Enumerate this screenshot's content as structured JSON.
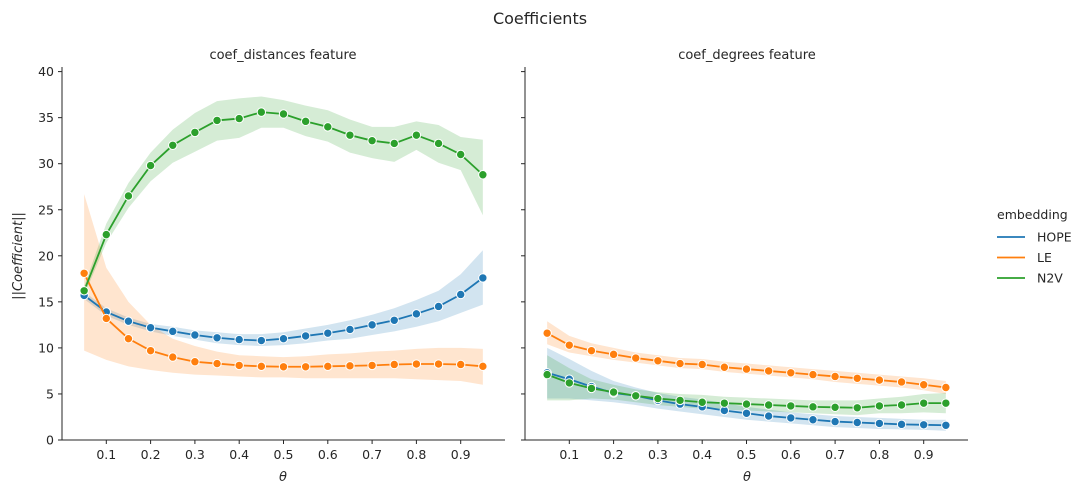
{
  "chart_data": {
    "type": "line",
    "title": "Coefficients",
    "xlabel": "θ",
    "ylabel": "||Coefficient||",
    "xlim": [
      0.0,
      1.0
    ],
    "ylim": [
      0,
      40.5
    ],
    "x": [
      0.05,
      0.1,
      0.15,
      0.2,
      0.25,
      0.3,
      0.35,
      0.4,
      0.45,
      0.5,
      0.55,
      0.6,
      0.65,
      0.7,
      0.75,
      0.8,
      0.85,
      0.9,
      0.95
    ],
    "x_ticks": [
      "0.1",
      "0.2",
      "0.3",
      "0.4",
      "0.5",
      "0.6",
      "0.7",
      "0.8",
      "0.9"
    ],
    "y_ticks": [
      "0",
      "5",
      "10",
      "15",
      "20",
      "25",
      "30",
      "35",
      "40"
    ],
    "legend": {
      "title": "embedding",
      "placement": "right",
      "entries": [
        "HOPE",
        "LE",
        "N2V"
      ]
    },
    "colors": {
      "HOPE": "#1f77b4",
      "LE": "#ff7f0e",
      "N2V": "#2ca02c"
    },
    "panels": [
      {
        "title": "coef_distances feature",
        "series": [
          {
            "name": "HOPE",
            "values": [
              15.7,
              13.9,
              12.9,
              12.2,
              11.8,
              11.4,
              11.1,
              10.9,
              10.8,
              11.0,
              11.3,
              11.6,
              12.0,
              12.5,
              13.0,
              13.7,
              14.5,
              15.8,
              17.6
            ],
            "lower": [
              15.3,
              13.5,
              12.5,
              11.8,
              11.3,
              10.9,
              10.5,
              10.3,
              10.2,
              10.3,
              10.5,
              10.8,
              11.0,
              11.4,
              11.8,
              12.3,
              12.9,
              13.8,
              14.7
            ],
            "upper": [
              16.1,
              14.3,
              13.3,
              12.6,
              12.3,
              11.9,
              11.7,
              11.5,
              11.5,
              11.7,
              12.1,
              12.5,
              13.0,
              13.6,
              14.3,
              15.2,
              16.2,
              18.0,
              20.6
            ]
          },
          {
            "name": "LE",
            "values": [
              18.1,
              13.2,
              11.0,
              9.7,
              9.0,
              8.5,
              8.3,
              8.1,
              8.0,
              7.95,
              7.95,
              8.0,
              8.05,
              8.1,
              8.2,
              8.25,
              8.25,
              8.2,
              8.0
            ],
            "lower": [
              9.7,
              8.7,
              8.0,
              7.6,
              7.3,
              7.1,
              7.0,
              6.9,
              6.8,
              6.8,
              6.7,
              6.7,
              6.7,
              6.7,
              6.7,
              6.6,
              6.5,
              6.4,
              6.0
            ],
            "upper": [
              26.7,
              18.7,
              15.0,
              12.5,
              11.0,
              10.2,
              9.6,
              9.2,
              9.1,
              9.0,
              9.1,
              9.3,
              9.4,
              9.6,
              9.7,
              9.9,
              10.0,
              10.0,
              9.9
            ]
          },
          {
            "name": "N2V",
            "values": [
              16.2,
              22.3,
              26.5,
              29.8,
              32.0,
              33.4,
              34.7,
              34.9,
              35.6,
              35.4,
              34.6,
              34.0,
              33.1,
              32.5,
              32.2,
              33.1,
              32.2,
              31.0,
              28.8
            ],
            "lower": [
              15.7,
              21.4,
              25.2,
              28.1,
              30.1,
              31.3,
              32.5,
              32.8,
              33.9,
              33.9,
              33.0,
              32.4,
              31.2,
              30.6,
              30.2,
              31.5,
              30.1,
              29.3,
              24.4
            ],
            "upper": [
              16.7,
              23.5,
              27.9,
              31.2,
              33.7,
              35.5,
              36.8,
              37.1,
              37.3,
              36.9,
              36.3,
              35.8,
              34.8,
              34.0,
              34.0,
              34.6,
              34.2,
              32.9,
              32.6
            ]
          }
        ]
      },
      {
        "title": "coef_degrees feature",
        "series": [
          {
            "name": "HOPE",
            "values": [
              7.3,
              6.6,
              5.8,
              5.1,
              4.8,
              4.3,
              3.9,
              3.6,
              3.2,
              2.9,
              2.6,
              2.4,
              2.2,
              2.0,
              1.9,
              1.8,
              1.7,
              1.65,
              1.6
            ],
            "lower": [
              4.5,
              4.5,
              4.3,
              4.1,
              3.8,
              3.4,
              3.1,
              2.8,
              2.5,
              2.2,
              2.0,
              1.8,
              1.6,
              1.4,
              1.3,
              1.2,
              1.15,
              1.1,
              1.0
            ],
            "upper": [
              10.0,
              8.8,
              7.5,
              6.4,
              5.7,
              5.1,
              4.7,
              4.4,
              4.0,
              3.6,
              3.3,
              3.0,
              2.8,
              2.6,
              2.5,
              2.4,
              2.3,
              2.2,
              2.2
            ]
          },
          {
            "name": "LE",
            "values": [
              11.6,
              10.3,
              9.7,
              9.3,
              8.9,
              8.6,
              8.3,
              8.2,
              7.9,
              7.7,
              7.5,
              7.3,
              7.1,
              6.9,
              6.7,
              6.5,
              6.3,
              6.0,
              5.7
            ],
            "lower": [
              10.4,
              9.5,
              9.1,
              8.7,
              8.4,
              8.1,
              7.8,
              7.7,
              7.4,
              7.2,
              7.0,
              6.8,
              6.6,
              6.3,
              6.1,
              5.9,
              5.7,
              5.4,
              5.0
            ],
            "upper": [
              12.9,
              11.3,
              10.5,
              10.0,
              9.5,
              9.2,
              8.9,
              8.8,
              8.5,
              8.3,
              8.1,
              7.9,
              7.7,
              7.5,
              7.3,
              7.1,
              6.9,
              6.7,
              6.4
            ]
          },
          {
            "name": "N2V",
            "values": [
              7.1,
              6.2,
              5.6,
              5.2,
              4.8,
              4.5,
              4.3,
              4.1,
              4.0,
              3.9,
              3.8,
              3.7,
              3.6,
              3.55,
              3.5,
              3.7,
              3.8,
              4.0,
              4.0
            ],
            "lower": [
              4.3,
              4.3,
              4.5,
              4.4,
              4.1,
              3.8,
              3.6,
              3.4,
              3.3,
              3.2,
              3.1,
              3.0,
              2.9,
              2.8,
              2.7,
              2.9,
              2.9,
              3.0,
              2.9
            ],
            "upper": [
              9.2,
              7.8,
              6.6,
              6.0,
              5.5,
              5.2,
              5.0,
              4.9,
              4.7,
              4.6,
              4.5,
              4.4,
              4.3,
              4.3,
              4.3,
              4.5,
              4.7,
              5.0,
              5.1
            ]
          }
        ]
      }
    ]
  }
}
